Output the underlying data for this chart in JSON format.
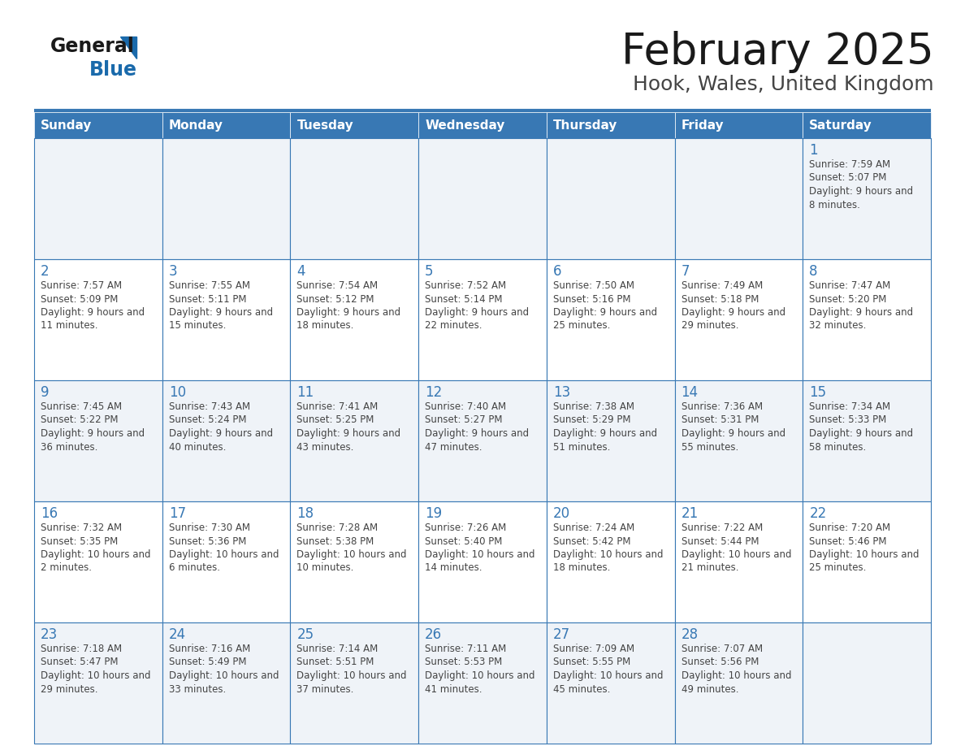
{
  "title": "February 2025",
  "subtitle": "Hook, Wales, United Kingdom",
  "header_color": "#3878b4",
  "header_text_color": "#ffffff",
  "cell_bg_odd": "#eff3f8",
  "cell_bg_even": "#ffffff",
  "border_color": "#3878b4",
  "day_names": [
    "Sunday",
    "Monday",
    "Tuesday",
    "Wednesday",
    "Thursday",
    "Friday",
    "Saturday"
  ],
  "text_color": "#444444",
  "day_number_color": "#3878b4",
  "logo_color": "#1a6aab",
  "calendar": [
    [
      null,
      null,
      null,
      null,
      null,
      null,
      1
    ],
    [
      2,
      3,
      4,
      5,
      6,
      7,
      8
    ],
    [
      9,
      10,
      11,
      12,
      13,
      14,
      15
    ],
    [
      16,
      17,
      18,
      19,
      20,
      21,
      22
    ],
    [
      23,
      24,
      25,
      26,
      27,
      28,
      null
    ]
  ],
  "cell_data": {
    "1": {
      "sunrise": "7:59 AM",
      "sunset": "5:07 PM",
      "daylight": "9 hours and 8 minutes"
    },
    "2": {
      "sunrise": "7:57 AM",
      "sunset": "5:09 PM",
      "daylight": "9 hours and 11 minutes"
    },
    "3": {
      "sunrise": "7:55 AM",
      "sunset": "5:11 PM",
      "daylight": "9 hours and 15 minutes"
    },
    "4": {
      "sunrise": "7:54 AM",
      "sunset": "5:12 PM",
      "daylight": "9 hours and 18 minutes"
    },
    "5": {
      "sunrise": "7:52 AM",
      "sunset": "5:14 PM",
      "daylight": "9 hours and 22 minutes"
    },
    "6": {
      "sunrise": "7:50 AM",
      "sunset": "5:16 PM",
      "daylight": "9 hours and 25 minutes"
    },
    "7": {
      "sunrise": "7:49 AM",
      "sunset": "5:18 PM",
      "daylight": "9 hours and 29 minutes"
    },
    "8": {
      "sunrise": "7:47 AM",
      "sunset": "5:20 PM",
      "daylight": "9 hours and 32 minutes"
    },
    "9": {
      "sunrise": "7:45 AM",
      "sunset": "5:22 PM",
      "daylight": "9 hours and 36 minutes"
    },
    "10": {
      "sunrise": "7:43 AM",
      "sunset": "5:24 PM",
      "daylight": "9 hours and 40 minutes"
    },
    "11": {
      "sunrise": "7:41 AM",
      "sunset": "5:25 PM",
      "daylight": "9 hours and 43 minutes"
    },
    "12": {
      "sunrise": "7:40 AM",
      "sunset": "5:27 PM",
      "daylight": "9 hours and 47 minutes"
    },
    "13": {
      "sunrise": "7:38 AM",
      "sunset": "5:29 PM",
      "daylight": "9 hours and 51 minutes"
    },
    "14": {
      "sunrise": "7:36 AM",
      "sunset": "5:31 PM",
      "daylight": "9 hours and 55 minutes"
    },
    "15": {
      "sunrise": "7:34 AM",
      "sunset": "5:33 PM",
      "daylight": "9 hours and 58 minutes"
    },
    "16": {
      "sunrise": "7:32 AM",
      "sunset": "5:35 PM",
      "daylight": "10 hours and 2 minutes"
    },
    "17": {
      "sunrise": "7:30 AM",
      "sunset": "5:36 PM",
      "daylight": "10 hours and 6 minutes"
    },
    "18": {
      "sunrise": "7:28 AM",
      "sunset": "5:38 PM",
      "daylight": "10 hours and 10 minutes"
    },
    "19": {
      "sunrise": "7:26 AM",
      "sunset": "5:40 PM",
      "daylight": "10 hours and 14 minutes"
    },
    "20": {
      "sunrise": "7:24 AM",
      "sunset": "5:42 PM",
      "daylight": "10 hours and 18 minutes"
    },
    "21": {
      "sunrise": "7:22 AM",
      "sunset": "5:44 PM",
      "daylight": "10 hours and 21 minutes"
    },
    "22": {
      "sunrise": "7:20 AM",
      "sunset": "5:46 PM",
      "daylight": "10 hours and 25 minutes"
    },
    "23": {
      "sunrise": "7:18 AM",
      "sunset": "5:47 PM",
      "daylight": "10 hours and 29 minutes"
    },
    "24": {
      "sunrise": "7:16 AM",
      "sunset": "5:49 PM",
      "daylight": "10 hours and 33 minutes"
    },
    "25": {
      "sunrise": "7:14 AM",
      "sunset": "5:51 PM",
      "daylight": "10 hours and 37 minutes"
    },
    "26": {
      "sunrise": "7:11 AM",
      "sunset": "5:53 PM",
      "daylight": "10 hours and 41 minutes"
    },
    "27": {
      "sunrise": "7:09 AM",
      "sunset": "5:55 PM",
      "daylight": "10 hours and 45 minutes"
    },
    "28": {
      "sunrise": "7:07 AM",
      "sunset": "5:56 PM",
      "daylight": "10 hours and 49 minutes"
    }
  }
}
